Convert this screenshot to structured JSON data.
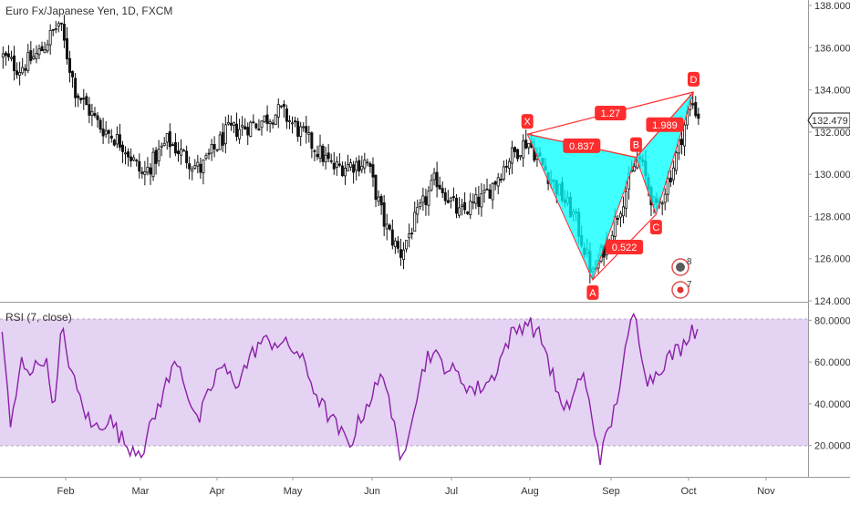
{
  "header": {
    "title": "Euro Fx/Japanese Yen, 1D, FXCM"
  },
  "price_axis": {
    "ticks": [
      "138.000",
      "136.000",
      "134.000",
      "132.000",
      "130.000",
      "128.000",
      "126.000",
      "124.000"
    ],
    "last_price": "132.479"
  },
  "rsi": {
    "label": "RSI (7, close)",
    "ticks": [
      "80.0000",
      "60.0000",
      "40.0000",
      "20.0000"
    ]
  },
  "time_axis": {
    "labels": [
      "Feb",
      "Mar",
      "Apr",
      "May",
      "Jun",
      "Jul",
      "Aug",
      "Sep",
      "Oct",
      "Nov"
    ]
  },
  "pattern": {
    "points": {
      "X": "X",
      "A": "A",
      "B": "B",
      "C": "C",
      "D": "D"
    },
    "ratios": {
      "xb": "0.837",
      "xd": "1.27",
      "ac": "0.522",
      "bd": "1.989"
    }
  },
  "badges": {
    "earnings_count": "8",
    "dividend_count": "7"
  },
  "colors": {
    "candle": "#111111",
    "pattern_fill": "#00ffff",
    "pattern_line": "#ff2d2d",
    "label_bg": "#ff2d2d",
    "rsi_line": "#8a1fa8",
    "rsi_band": "#e4d3f2"
  },
  "chart_data": [
    {
      "type": "candlestick",
      "title": "Euro Fx/Japanese Yen, 1D, FXCM",
      "ylim": [
        124,
        138
      ],
      "x_range": [
        "Jan",
        "Nov"
      ],
      "anchors": [
        {
          "date": "Jan 02",
          "close": 135.6
        },
        {
          "date": "Jan 10",
          "close": 135.0
        },
        {
          "date": "Jan 20",
          "close": 135.8
        },
        {
          "date": "Jan 29",
          "close": 137.2
        },
        {
          "date": "Feb 05",
          "close": 134.0
        },
        {
          "date": "Feb 15",
          "close": 132.3
        },
        {
          "date": "Feb 25",
          "close": 131.4
        },
        {
          "date": "Mar 02",
          "close": 129.9
        },
        {
          "date": "Mar 12",
          "close": 131.6
        },
        {
          "date": "Mar 25",
          "close": 130.2
        },
        {
          "date": "Apr 05",
          "close": 132.0
        },
        {
          "date": "Apr 17",
          "close": 132.4
        },
        {
          "date": "Apr 27",
          "close": 133.0
        },
        {
          "date": "May 07",
          "close": 131.6
        },
        {
          "date": "May 17",
          "close": 130.3
        },
        {
          "date": "May 30",
          "close": 130.6
        },
        {
          "date": "Jun 06",
          "close": 127.6
        },
        {
          "date": "Jun 12",
          "close": 126.2
        },
        {
          "date": "Jun 17",
          "close": 127.6
        },
        {
          "date": "Jun 26",
          "close": 129.8
        },
        {
          "date": "Jul 04",
          "close": 128.1
        },
        {
          "date": "Jul 14",
          "close": 128.9
        },
        {
          "date": "Jul 24",
          "close": 130.8
        },
        {
          "date": "Jul 31",
          "close": 131.6
        },
        {
          "date": "Aug 08",
          "close": 130.0
        },
        {
          "date": "Aug 18",
          "close": 128.0
        },
        {
          "date": "Aug 25",
          "close": 125.2
        },
        {
          "date": "Sep 02",
          "close": 127.6
        },
        {
          "date": "Sep 12",
          "close": 130.9
        },
        {
          "date": "Sep 19",
          "close": 128.2
        },
        {
          "date": "Sep 26",
          "close": 130.4
        },
        {
          "date": "Oct 02",
          "close": 133.5
        },
        {
          "date": "Oct 06",
          "close": 132.5
        }
      ],
      "pattern": {
        "X": {
          "date": "Jul 31",
          "price": 131.9
        },
        "A": {
          "date": "Aug 25",
          "price": 125.0
        },
        "B": {
          "date": "Sep 11",
          "price": 130.8
        },
        "C": {
          "date": "Sep 19",
          "price": 128.1
        },
        "D": {
          "date": "Oct 03",
          "price": 133.9
        }
      },
      "last_price": 132.479
    },
    {
      "type": "line",
      "title": "RSI (7, close)",
      "ylim": [
        5,
        88
      ],
      "guide_levels": [
        80,
        20
      ],
      "anchors": [
        {
          "date": "Jan 02",
          "value": 76
        },
        {
          "date": "Jan 06",
          "value": 27
        },
        {
          "date": "Jan 11",
          "value": 60
        },
        {
          "date": "Jan 17",
          "value": 56
        },
        {
          "date": "Jan 22",
          "value": 63
        },
        {
          "date": "Jan 27",
          "value": 38
        },
        {
          "date": "Jan 30",
          "value": 76
        },
        {
          "date": "Feb 05",
          "value": 48
        },
        {
          "date": "Feb 12",
          "value": 28
        },
        {
          "date": "Feb 19",
          "value": 33
        },
        {
          "date": "Feb 26",
          "value": 20
        },
        {
          "date": "Mar 02",
          "value": 18
        },
        {
          "date": "Mar 10",
          "value": 45
        },
        {
          "date": "Mar 16",
          "value": 62
        },
        {
          "date": "Mar 24",
          "value": 30
        },
        {
          "date": "Apr 02",
          "value": 58
        },
        {
          "date": "Apr 09",
          "value": 50
        },
        {
          "date": "Apr 18",
          "value": 69
        },
        {
          "date": "Apr 25",
          "value": 70
        },
        {
          "date": "May 03",
          "value": 65
        },
        {
          "date": "May 12",
          "value": 40
        },
        {
          "date": "May 23",
          "value": 20
        },
        {
          "date": "May 30",
          "value": 40
        },
        {
          "date": "Jun 06",
          "value": 55
        },
        {
          "date": "Jun 12",
          "value": 10
        },
        {
          "date": "Jun 17",
          "value": 38
        },
        {
          "date": "Jun 23",
          "value": 65
        },
        {
          "date": "Jul 02",
          "value": 55
        },
        {
          "date": "Jul 10",
          "value": 46
        },
        {
          "date": "Jul 17",
          "value": 52
        },
        {
          "date": "Jul 24",
          "value": 72
        },
        {
          "date": "Jul 31",
          "value": 80
        },
        {
          "date": "Aug 06",
          "value": 70
        },
        {
          "date": "Aug 14",
          "value": 34
        },
        {
          "date": "Aug 21",
          "value": 55
        },
        {
          "date": "Aug 28",
          "value": 14
        },
        {
          "date": "Sep 02",
          "value": 35
        },
        {
          "date": "Sep 10",
          "value": 84
        },
        {
          "date": "Sep 16",
          "value": 50
        },
        {
          "date": "Sep 22",
          "value": 60
        },
        {
          "date": "Sep 30",
          "value": 68
        },
        {
          "date": "Oct 02",
          "value": 77
        },
        {
          "date": "Oct 05",
          "value": 74
        }
      ]
    }
  ]
}
